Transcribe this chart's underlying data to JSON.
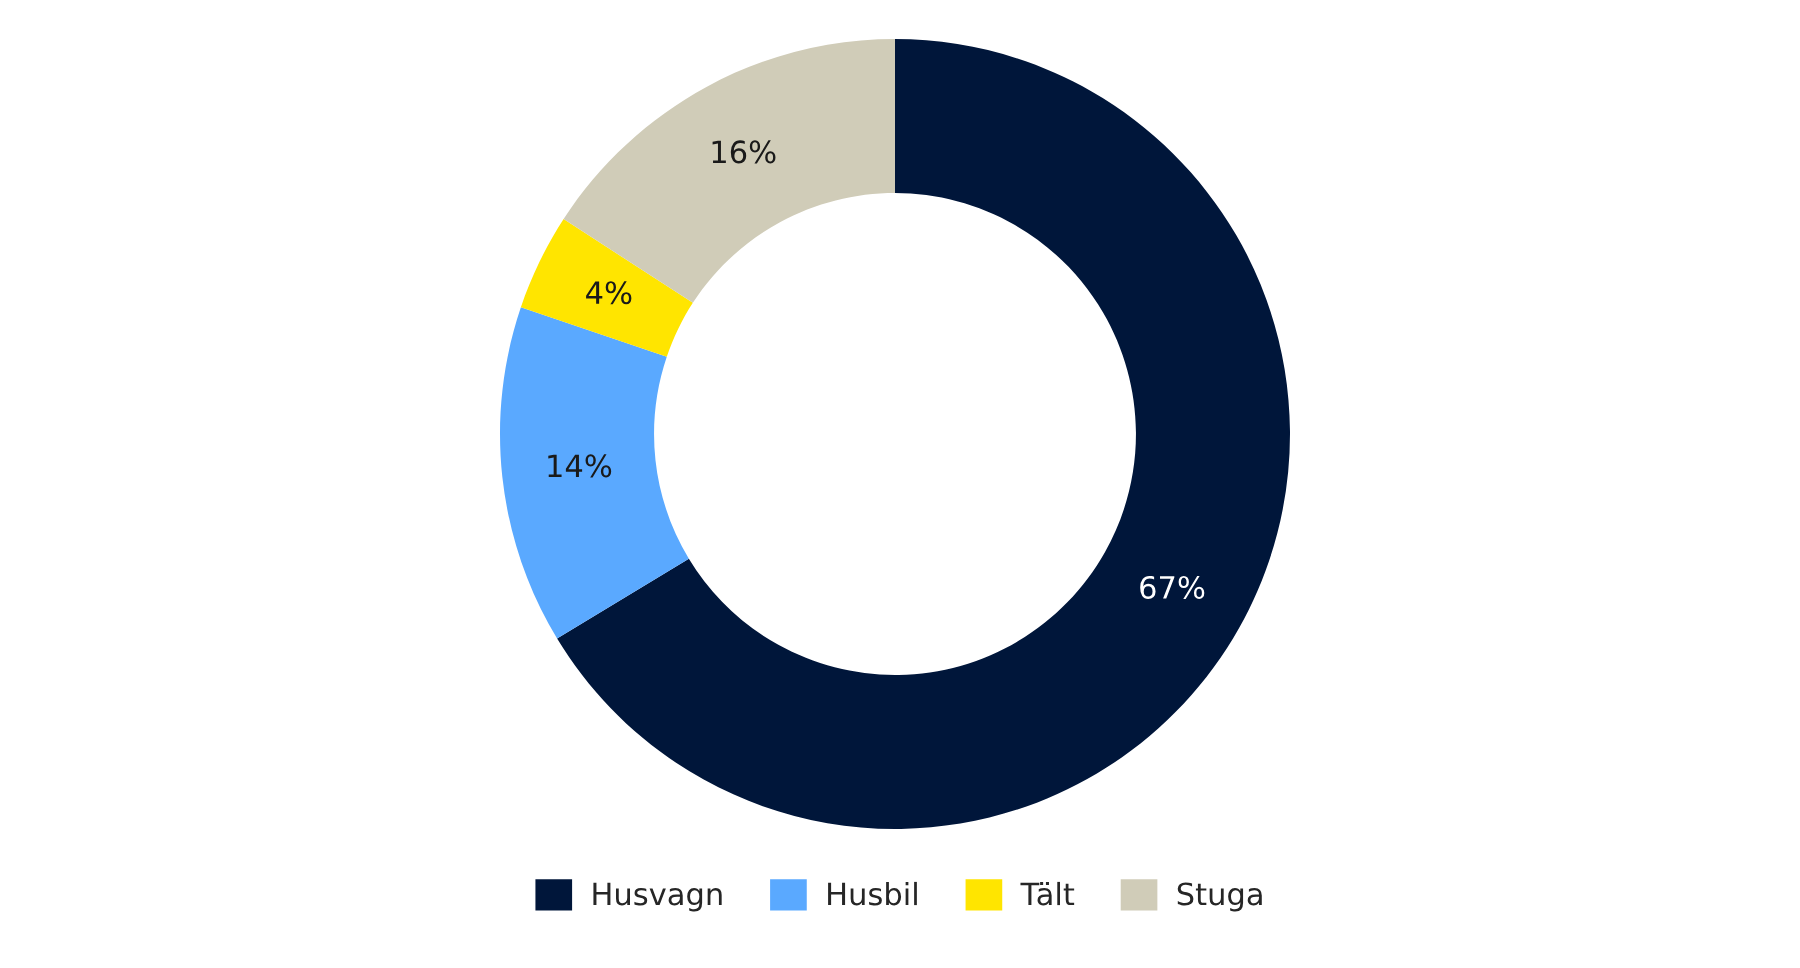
{
  "chart_data": {
    "type": "donut",
    "categories": [
      "Husvagn",
      "Husbil",
      "Tält",
      "Stuga"
    ],
    "values": [
      67,
      14,
      4,
      16
    ],
    "colors": [
      "#00163a",
      "#5aa9ff",
      "#ffe500",
      "#d0ccb8"
    ],
    "value_labels": [
      "67%",
      "14%",
      "4%",
      "16%"
    ],
    "legend": "bottom"
  }
}
